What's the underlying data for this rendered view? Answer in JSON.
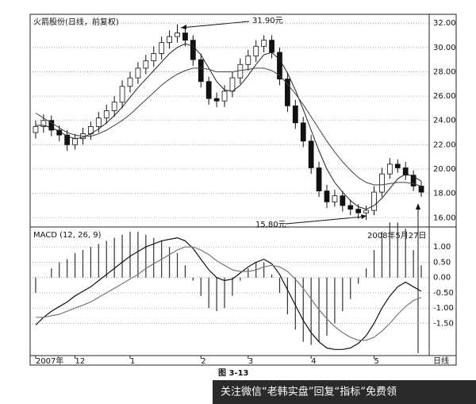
{
  "chart_data": [
    {
      "type": "candlestick",
      "title": "火箭股份(日线，前复权)",
      "color": "#111",
      "open": [
        23.0,
        23.5,
        24.0,
        23.2,
        22.8,
        22.0,
        22.5,
        22.9,
        23.5,
        24.2,
        24.8,
        25.5,
        26.8,
        27.5,
        28.3,
        28.9,
        29.5,
        30.4,
        30.9,
        31.2,
        30.6,
        29.0,
        27.2,
        25.8,
        25.6,
        26.4,
        27.5,
        28.6,
        29.3,
        30.1,
        30.6,
        29.6,
        27.4,
        25.2,
        23.8,
        22.3,
        20.1,
        18.2,
        17.3,
        17.8,
        17.0,
        16.7,
        16.4,
        16.6,
        18.1,
        19.6,
        20.4,
        20.1,
        19.5,
        18.6
      ],
      "high": [
        24.0,
        24.5,
        24.4,
        23.6,
        23.2,
        22.9,
        23.4,
        23.9,
        24.7,
        25.3,
        26.0,
        27.3,
        28.0,
        28.8,
        29.4,
        30.1,
        30.9,
        31.4,
        31.9,
        31.6,
        31.0,
        29.5,
        27.6,
        26.3,
        26.9,
        28.0,
        29.1,
        29.8,
        30.6,
        31.0,
        31.0,
        30.0,
        27.9,
        25.7,
        24.3,
        22.8,
        20.6,
        18.7,
        18.3,
        18.2,
        17.5,
        17.1,
        17.0,
        18.6,
        20.1,
        20.9,
        20.8,
        20.6,
        19.9,
        19.0
      ],
      "low": [
        22.5,
        23.0,
        22.7,
        22.3,
        21.5,
        21.6,
        22.0,
        22.4,
        23.0,
        23.7,
        24.3,
        25.0,
        26.3,
        27.0,
        27.8,
        28.4,
        29.0,
        29.9,
        30.4,
        30.1,
        28.5,
        26.7,
        25.3,
        25.1,
        25.1,
        25.9,
        27.0,
        28.1,
        28.8,
        29.6,
        29.1,
        26.9,
        24.7,
        23.3,
        21.8,
        19.6,
        17.7,
        16.8,
        16.9,
        16.5,
        16.2,
        15.9,
        15.8,
        16.2,
        17.7,
        19.2,
        19.7,
        19.1,
        18.2,
        17.7
      ],
      "close": [
        23.5,
        24.0,
        23.2,
        22.8,
        22.0,
        22.5,
        22.9,
        23.5,
        24.2,
        24.8,
        25.5,
        26.8,
        27.5,
        28.3,
        28.9,
        29.5,
        30.4,
        30.9,
        31.2,
        30.6,
        29.0,
        27.2,
        25.8,
        25.6,
        26.4,
        27.5,
        28.6,
        29.3,
        30.1,
        30.6,
        29.6,
        27.4,
        25.2,
        23.8,
        22.3,
        20.1,
        18.2,
        17.3,
        17.8,
        17.0,
        16.7,
        16.4,
        16.6,
        18.1,
        19.6,
        20.4,
        20.1,
        19.5,
        18.6,
        18.1
      ],
      "moving_averages": [
        {
          "color": "#222",
          "values": [
            23.6,
            23.6,
            23.4,
            23.1,
            22.7,
            22.5,
            22.6,
            22.9,
            23.3,
            23.8,
            24.4,
            25.1,
            25.9,
            26.7,
            27.4,
            28.1,
            28.8,
            29.5,
            30.0,
            30.3,
            30.1,
            29.4,
            28.3,
            27.2,
            26.5,
            26.4,
            26.9,
            27.7,
            28.6,
            29.4,
            29.6,
            29.0,
            27.9,
            26.5,
            24.9,
            23.2,
            21.5,
            20.0,
            18.9,
            18.1,
            17.4,
            16.9,
            16.7,
            17.0,
            17.6,
            18.4,
            19.2,
            19.6,
            19.4,
            19.0
          ]
        },
        {
          "color": "#444",
          "values": [
            24.6,
            24.2,
            23.8,
            23.4,
            23.0,
            22.8,
            22.7,
            22.7,
            22.9,
            23.2,
            23.6,
            24.0,
            24.5,
            25.1,
            25.7,
            26.3,
            26.9,
            27.4,
            27.8,
            28.1,
            28.3,
            28.3,
            28.2,
            28.0,
            28.0,
            28.0,
            28.1,
            28.2,
            28.3,
            28.3,
            28.1,
            27.7,
            27.0,
            26.2,
            25.3,
            24.3,
            23.3,
            22.3,
            21.4,
            20.6,
            19.9,
            19.3,
            18.9,
            18.7,
            18.7,
            18.8,
            18.9,
            18.9,
            18.8,
            18.6
          ]
        }
      ],
      "ylim": [
        15.3,
        32.6
      ],
      "yticks": [
        {
          "value": 32,
          "label": "32.00"
        },
        {
          "value": 30,
          "label": "30.00"
        },
        {
          "value": 28,
          "label": "28.00"
        },
        {
          "value": 26,
          "label": "26.00"
        },
        {
          "value": 24,
          "label": "24.00"
        },
        {
          "value": 22,
          "label": "22.00"
        },
        {
          "value": 20,
          "label": "20.00"
        },
        {
          "value": 18,
          "label": "18.00"
        },
        {
          "value": 16,
          "label": "16.00"
        }
      ],
      "grid": true,
      "annotations": [
        "31.90元",
        "15.80元"
      ]
    },
    {
      "type": "macd",
      "title": "MACD (12, 26, 9)",
      "color": "#333",
      "categories": [
        "2007年",
        null,
        null,
        null,
        null,
        "12",
        null,
        null,
        null,
        null,
        null,
        null,
        "1",
        null,
        null,
        null,
        null,
        null,
        null,
        null,
        null,
        "2",
        null,
        null,
        null,
        null,
        null,
        "3",
        null,
        null,
        null,
        null,
        null,
        null,
        null,
        "4",
        null,
        null,
        null,
        null,
        null,
        null,
        null,
        "5",
        null,
        null,
        null,
        null,
        null,
        null
      ],
      "histogram": [
        -0.5,
        0,
        0.3,
        0.5,
        0.6,
        0.8,
        0.9,
        1.0,
        1.1,
        1.2,
        1.3,
        1.4,
        1.5,
        1.5,
        1.4,
        1.3,
        1.2,
        1.0,
        0.8,
        0.4,
        -0.1,
        -0.6,
        -1.0,
        -1.1,
        -1.0,
        -0.6,
        -0.1,
        0.3,
        0.5,
        0.5,
        0.1,
        -0.5,
        -1.2,
        -1.7,
        -2.1,
        -2.2,
        -2.1,
        -1.9,
        -1.5,
        -1.1,
        -0.7,
        -0.2,
        0.3,
        0.9,
        1.5,
        1.8,
        1.8,
        1.6,
        0.9,
        0.4
      ],
      "series": [
        {
          "color": "#111",
          "values": [
            -1.55,
            -1.3,
            -1.1,
            -0.95,
            -0.8,
            -0.6,
            -0.45,
            -0.3,
            -0.1,
            0.1,
            0.3,
            0.5,
            0.7,
            0.85,
            1.0,
            1.1,
            1.2,
            1.25,
            1.3,
            1.2,
            0.95,
            0.6,
            0.25,
            0.0,
            -0.1,
            -0.05,
            0.15,
            0.35,
            0.5,
            0.6,
            0.45,
            0.1,
            -0.4,
            -0.9,
            -1.4,
            -1.8,
            -2.1,
            -2.3,
            -2.35,
            -2.35,
            -2.3,
            -2.15,
            -1.9,
            -1.5,
            -1.0,
            -0.6,
            -0.3,
            -0.15,
            -0.3,
            -0.45
          ]
        },
        {
          "color": "#777",
          "values": [
            -1.3,
            -1.3,
            -1.25,
            -1.2,
            -1.1,
            -1.0,
            -0.9,
            -0.8,
            -0.65,
            -0.5,
            -0.35,
            -0.2,
            -0.05,
            0.1,
            0.3,
            0.45,
            0.6,
            0.75,
            0.9,
            1.0,
            1.0,
            0.9,
            0.75,
            0.55,
            0.4,
            0.25,
            0.2,
            0.2,
            0.25,
            0.35,
            0.4,
            0.35,
            0.2,
            -0.05,
            -0.35,
            -0.7,
            -1.05,
            -1.35,
            -1.6,
            -1.8,
            -1.95,
            -2.05,
            -2.05,
            -1.95,
            -1.75,
            -1.5,
            -1.2,
            -0.95,
            -0.75,
            -0.65
          ]
        }
      ],
      "ylim": [
        -2.55,
        1.6
      ],
      "yticks": [
        {
          "value": 1,
          "label": "1.00"
        },
        {
          "value": 0.5,
          "label": "0.50"
        },
        {
          "value": 0,
          "label": "0.00"
        },
        {
          "value": -0.5,
          "label": "-0.50"
        },
        {
          "value": -1,
          "label": "-1.00"
        },
        {
          "value": -1.5,
          "label": "-1.50"
        }
      ],
      "grid": true,
      "annotations": [
        "2008年5月27日"
      ],
      "x_end_label": "日线"
    }
  ],
  "caption": "图 3-13",
  "watermark": "关注微信“老韩实盘”回复“指标”免费领"
}
